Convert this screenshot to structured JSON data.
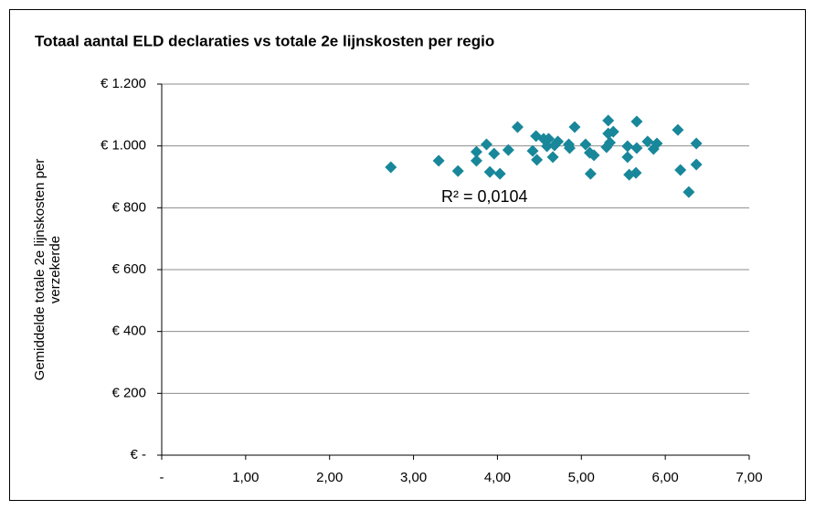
{
  "chart_data": {
    "type": "scatter",
    "title": "Totaal aantal ELD declaraties vs totale 2e lijnskosten per regio",
    "ylabel": [
      "Gemiddelde totale 2e lijnskosten per",
      "verzekerde"
    ],
    "annotation": "R² = 0,0104",
    "color": "#18879a",
    "grid": true,
    "xlim": [
      0,
      7
    ],
    "ylim": [
      0,
      1200
    ],
    "xticks": [
      {
        "value": 0,
        "label": "-"
      },
      {
        "value": 1,
        "label": "1,00"
      },
      {
        "value": 2,
        "label": "2,00"
      },
      {
        "value": 3,
        "label": "3,00"
      },
      {
        "value": 4,
        "label": "4,00"
      },
      {
        "value": 5,
        "label": "5,00"
      },
      {
        "value": 6,
        "label": "6,00"
      },
      {
        "value": 7,
        "label": "7,00"
      }
    ],
    "yticks": [
      {
        "value": 0,
        "label": "€ -"
      },
      {
        "value": 200,
        "label": "€ 200"
      },
      {
        "value": 400,
        "label": "€ 400"
      },
      {
        "value": 600,
        "label": "€ 600"
      },
      {
        "value": 800,
        "label": "€ 800"
      },
      {
        "value": 1000,
        "label": "€ 1.000"
      },
      {
        "value": 1200,
        "label": "€ 1.200"
      }
    ],
    "x": [
      2.73,
      3.3,
      3.53,
      3.75,
      3.75,
      3.87,
      3.91,
      3.96,
      4.03,
      4.13,
      4.24,
      4.42,
      4.46,
      4.47,
      4.55,
      4.59,
      4.61,
      4.66,
      4.68,
      4.72,
      4.85,
      4.86,
      4.92,
      5.05,
      5.1,
      5.11,
      5.15,
      5.3,
      5.32,
      5.32,
      5.34,
      5.38,
      5.55,
      5.55,
      5.57,
      5.66,
      5.66,
      5.65,
      5.79,
      5.86,
      5.9,
      6.15,
      6.18,
      6.28,
      6.37,
      6.37
    ],
    "values": [
      931,
      952,
      919,
      981,
      952,
      1005,
      916,
      975,
      910,
      987,
      1061,
      984,
      1032,
      955,
      1023,
      999,
      1023,
      964,
      1002,
      1014,
      1005,
      993,
      1061,
      1005,
      978,
      910,
      970,
      996,
      1082,
      1040,
      1011,
      1046,
      999,
      964,
      907,
      993,
      1079,
      913,
      1014,
      990,
      1008,
      1052,
      922,
      851,
      1008,
      940
    ]
  }
}
